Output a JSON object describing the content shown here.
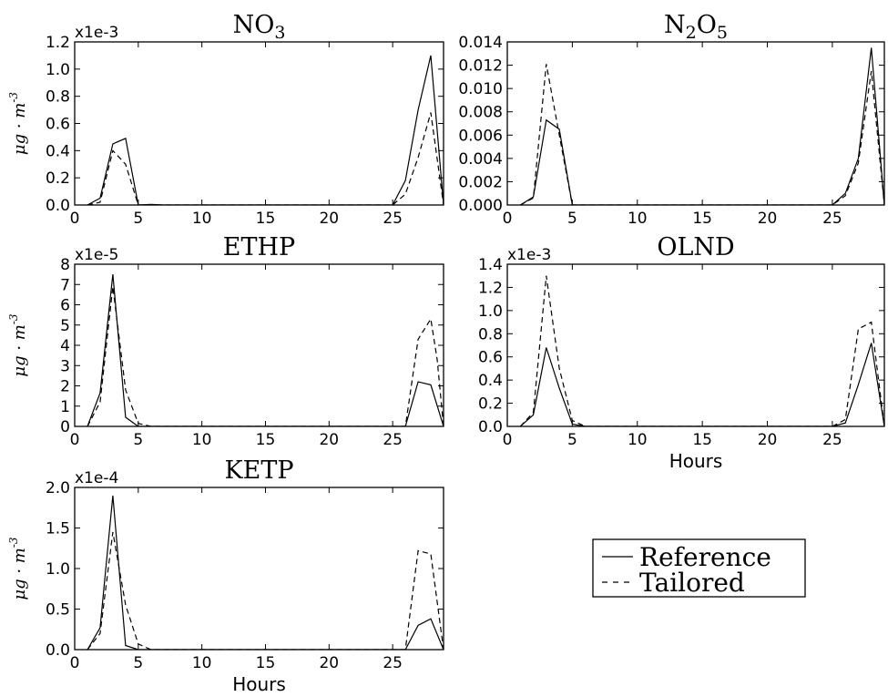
{
  "legend": {
    "entries": [
      {
        "label": "Reference",
        "dash": "solid"
      },
      {
        "label": "Tailored",
        "dash": "dashed"
      }
    ],
    "placement": "lower-right empty panel"
  },
  "chart_data": [
    {
      "type": "line",
      "title": "NO3",
      "title_base": "NO",
      "title_sub": "3",
      "ylabel": "μg · m^-3",
      "xlabel": "",
      "multiplier": "x1e-3",
      "xlim": [
        0,
        29
      ],
      "ylim": [
        0,
        1.2
      ],
      "xticks": [
        "0",
        "5",
        "10",
        "15",
        "20",
        "25"
      ],
      "yticks": [
        "0.0",
        "0.2",
        "0.4",
        "0.6",
        "0.8",
        "1.0",
        "1.2"
      ],
      "series": [
        {
          "name": "Reference",
          "dash": "solid",
          "x": [
            1,
            2,
            3,
            4,
            5,
            6,
            7,
            24,
            25,
            26,
            27,
            28,
            29
          ],
          "y": [
            0,
            0.05,
            0.45,
            0.49,
            0,
            0.005,
            0,
            0,
            0,
            0.18,
            0.7,
            1.1,
            0
          ]
        },
        {
          "name": "Tailored",
          "dash": "dashed",
          "x": [
            1,
            2,
            3,
            4,
            5,
            6,
            24,
            25,
            26,
            27,
            28,
            29
          ],
          "y": [
            0,
            0.02,
            0.4,
            0.3,
            0,
            0,
            0,
            0,
            0.08,
            0.35,
            0.68,
            0
          ]
        }
      ]
    },
    {
      "type": "line",
      "title": "N2O5",
      "title_base": "N",
      "title_sub": "2",
      "title_base2": "O",
      "title_sub2": "5",
      "ylabel": "",
      "xlabel": "",
      "multiplier": "",
      "xlim": [
        0,
        29
      ],
      "ylim": [
        0,
        0.014
      ],
      "xticks": [
        "0",
        "5",
        "10",
        "15",
        "20",
        "25"
      ],
      "yticks": [
        "0.000",
        "0.002",
        "0.004",
        "0.006",
        "0.008",
        "0.010",
        "0.012",
        "0.014"
      ],
      "series": [
        {
          "name": "Reference",
          "dash": "solid",
          "x": [
            1,
            2,
            3,
            4,
            5,
            6,
            25,
            26,
            27,
            28,
            29
          ],
          "y": [
            0,
            0.0007,
            0.0073,
            0.0065,
            0,
            0,
            0,
            0.001,
            0.004,
            0.0135,
            0
          ]
        },
        {
          "name": "Tailored",
          "dash": "dashed",
          "x": [
            1,
            2,
            3,
            4,
            5,
            6,
            25,
            26,
            27,
            28,
            29
          ],
          "y": [
            0,
            0.0006,
            0.0121,
            0.006,
            0,
            0,
            0,
            0.0008,
            0.0036,
            0.0115,
            0
          ]
        }
      ]
    },
    {
      "type": "line",
      "title": "ETHP",
      "ylabel": "μg · m^-3",
      "xlabel": "",
      "multiplier": "x1e-5",
      "xlim": [
        0,
        29
      ],
      "ylim": [
        0,
        8
      ],
      "xticks": [
        "0",
        "5",
        "10",
        "15",
        "20",
        "25"
      ],
      "yticks": [
        "0",
        "1",
        "2",
        "3",
        "4",
        "5",
        "6",
        "7",
        "8"
      ],
      "series": [
        {
          "name": "Reference",
          "dash": "solid",
          "x": [
            1,
            2,
            3,
            4,
            5,
            6,
            26,
            27,
            28,
            29
          ],
          "y": [
            0,
            1.65,
            7.5,
            0.45,
            0,
            0,
            0,
            2.2,
            2.05,
            0
          ]
        },
        {
          "name": "Tailored",
          "dash": "dashed",
          "x": [
            1,
            2,
            3,
            4,
            5,
            6,
            26,
            27,
            28,
            28.5,
            29
          ],
          "y": [
            0,
            1.2,
            6.9,
            1.8,
            0.15,
            0,
            0,
            4.3,
            5.3,
            3.3,
            0
          ]
        }
      ]
    },
    {
      "type": "line",
      "title": "OLND",
      "ylabel": "",
      "xlabel": "Hours",
      "multiplier": "x1e-3",
      "xlim": [
        0,
        29
      ],
      "ylim": [
        0,
        1.4
      ],
      "xticks": [
        "0",
        "5",
        "10",
        "15",
        "20",
        "25"
      ],
      "yticks": [
        "0.0",
        "0.2",
        "0.4",
        "0.6",
        "0.8",
        "1.0",
        "1.2",
        "1.4"
      ],
      "series": [
        {
          "name": "Reference",
          "dash": "solid",
          "x": [
            1,
            2,
            3,
            4,
            5,
            6,
            25,
            26,
            27,
            28,
            29
          ],
          "y": [
            0,
            0.1,
            0.68,
            0.33,
            0.02,
            0,
            0,
            0.03,
            0.36,
            0.72,
            0
          ]
        },
        {
          "name": "Tailored",
          "dash": "dashed",
          "x": [
            1,
            2,
            3,
            4,
            5,
            6,
            25,
            26,
            27,
            28,
            29
          ],
          "y": [
            0,
            0.12,
            1.3,
            0.5,
            0.05,
            0,
            0,
            0.06,
            0.84,
            0.9,
            0
          ]
        }
      ]
    },
    {
      "type": "line",
      "title": "KETP",
      "ylabel": "μg · m^-3",
      "xlabel": "Hours",
      "multiplier": "x1e-4",
      "xlim": [
        0,
        29
      ],
      "ylim": [
        0,
        2.0
      ],
      "xticks": [
        "0",
        "5",
        "10",
        "15",
        "20",
        "25"
      ],
      "yticks": [
        "0.0",
        "0.5",
        "1.0",
        "1.5",
        "2.0"
      ],
      "series": [
        {
          "name": "Reference",
          "dash": "solid",
          "x": [
            1,
            2,
            3,
            4,
            5,
            6,
            26,
            27,
            28,
            29
          ],
          "y": [
            0,
            0.27,
            1.9,
            0.05,
            0,
            0,
            0,
            0.3,
            0.38,
            0
          ]
        },
        {
          "name": "Tailored",
          "dash": "dashed",
          "x": [
            1,
            2,
            3,
            4,
            5,
            6,
            26,
            27,
            28,
            29
          ],
          "y": [
            0,
            0.2,
            1.45,
            0.55,
            0.07,
            0,
            0,
            1.22,
            1.18,
            0
          ]
        }
      ]
    }
  ]
}
